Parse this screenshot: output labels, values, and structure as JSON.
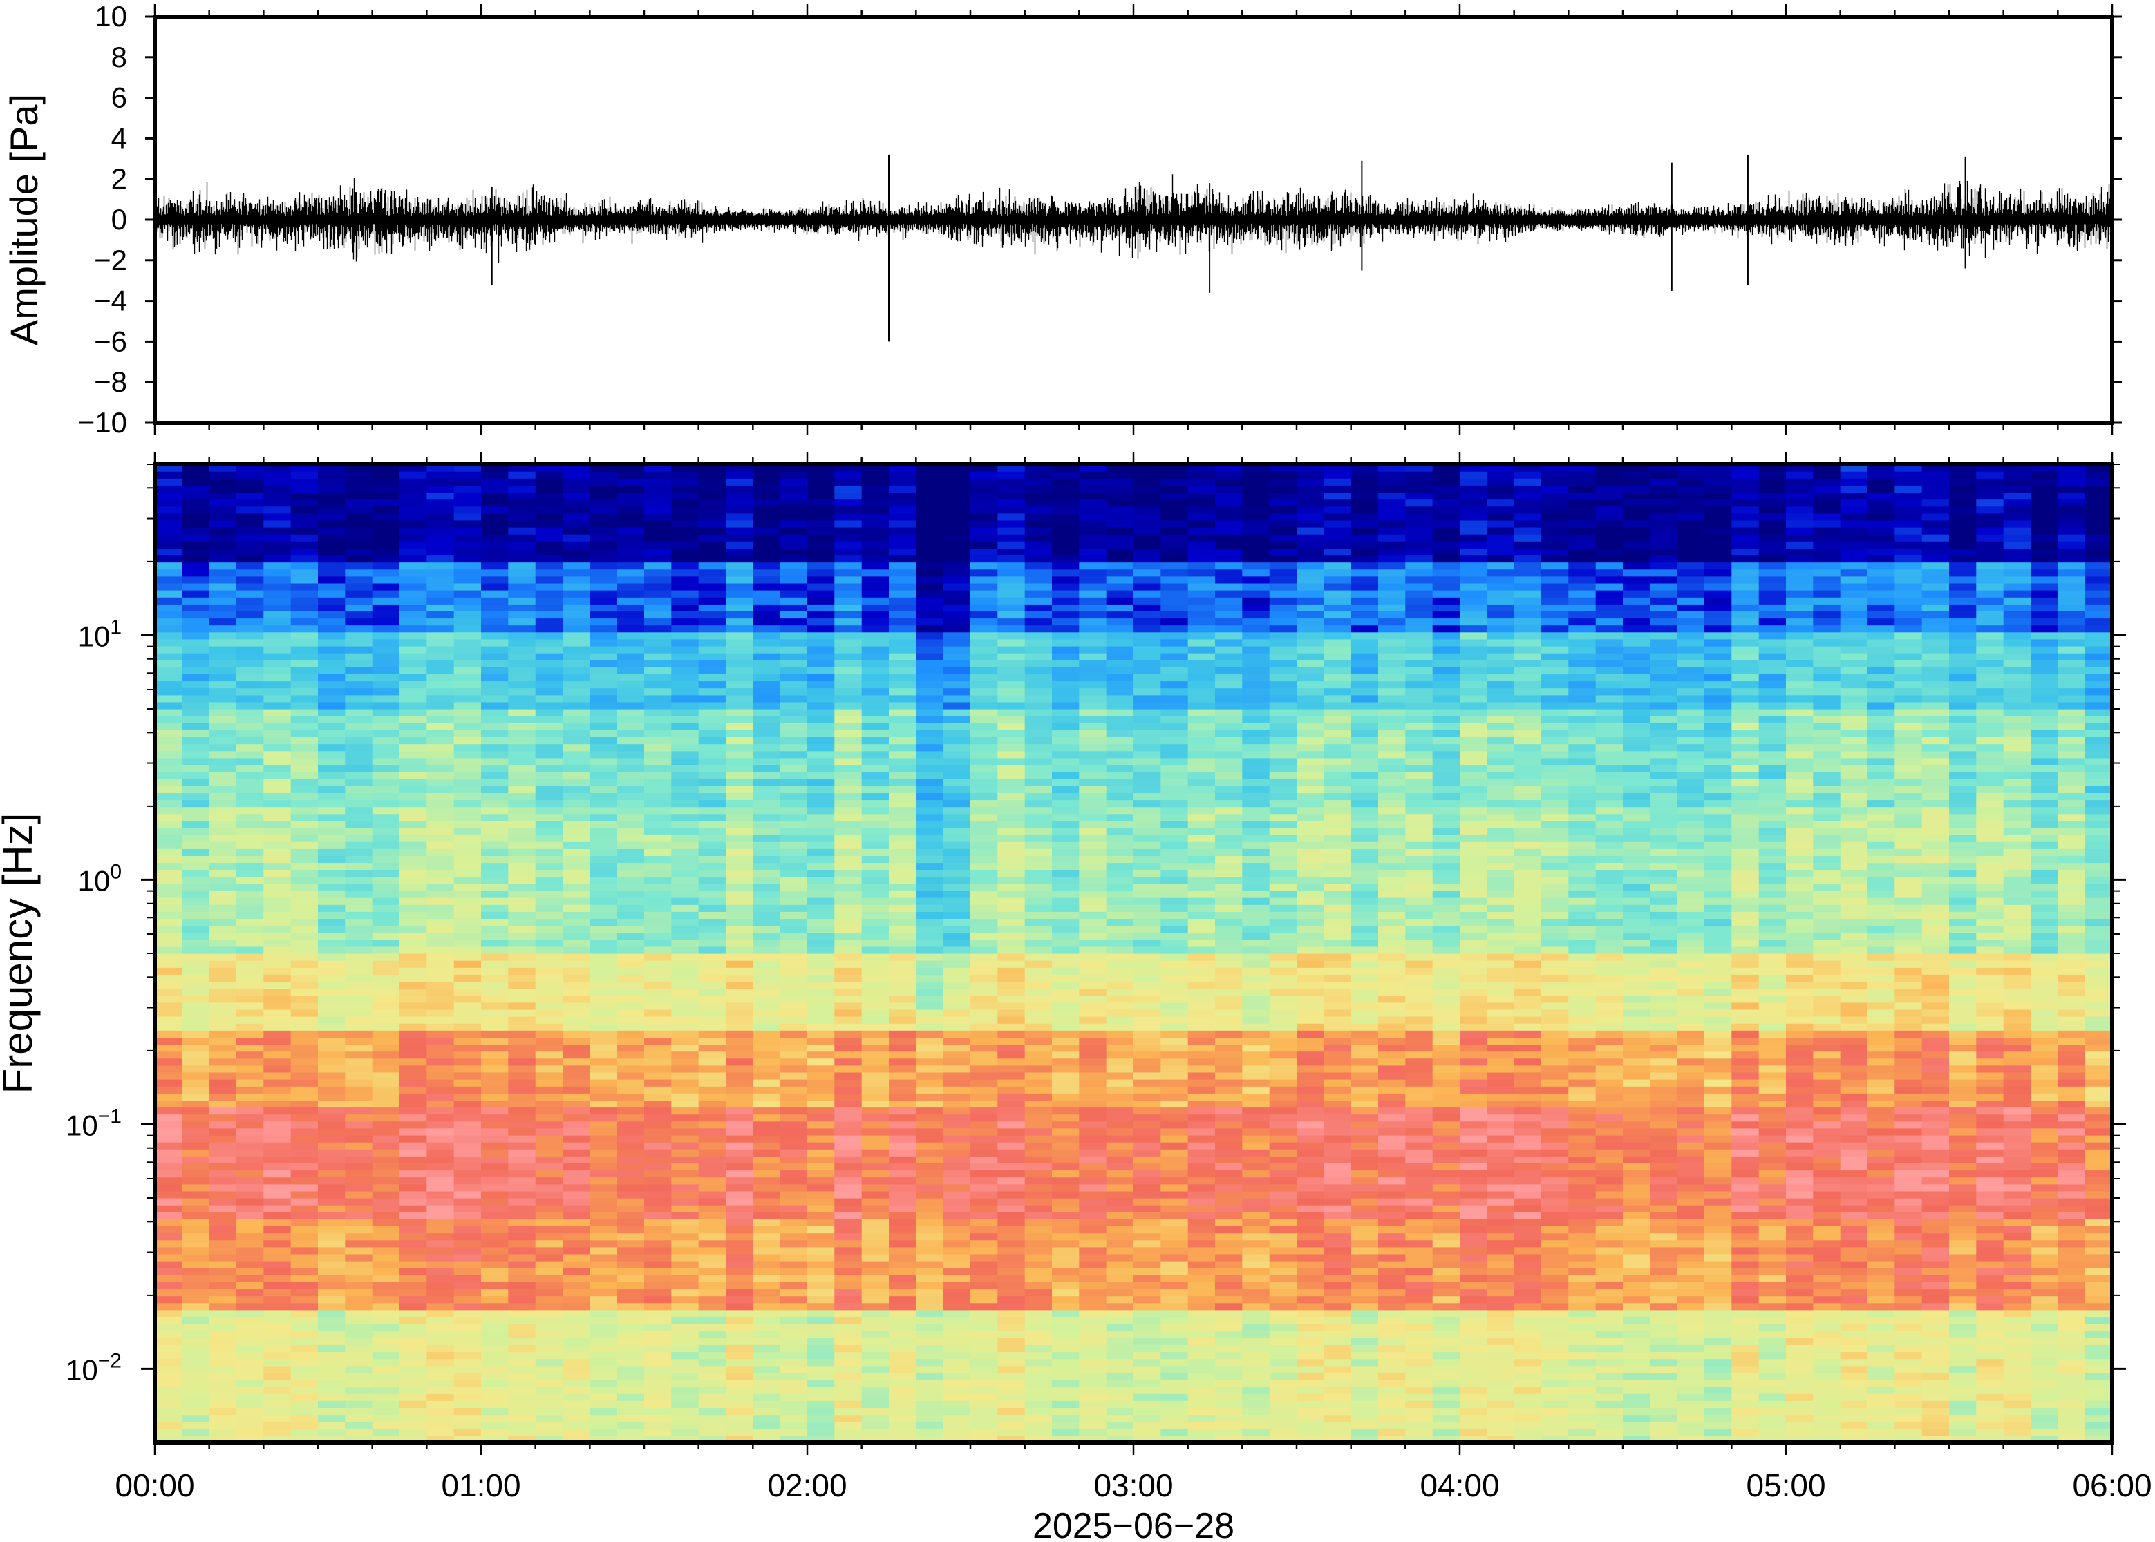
{
  "chart_data": [
    {
      "type": "line",
      "panel": "waveform",
      "ylabel": "Amplitude [Pa]",
      "ylim": [
        -10,
        10
      ],
      "yticks": [
        {
          "value": 10,
          "label": "10"
        },
        {
          "value": 8,
          "label": "8"
        },
        {
          "value": 6,
          "label": "6"
        },
        {
          "value": 4,
          "label": "4"
        },
        {
          "value": 2,
          "label": "2"
        },
        {
          "value": 0,
          "label": "0"
        },
        {
          "value": -2,
          "label": "−2"
        },
        {
          "value": -4,
          "label": "−4"
        },
        {
          "value": -6,
          "label": "−6"
        },
        {
          "value": -8,
          "label": "−8"
        },
        {
          "value": -10,
          "label": "−10"
        }
      ],
      "x_range": [
        "00:00",
        "06:00"
      ],
      "trace_color": "#000000",
      "typical_range": [
        -1.8,
        1.8
      ],
      "peaks": [
        {
          "time": "02:15",
          "min": -6.0,
          "max": 3.2
        },
        {
          "time": "01:02",
          "min": -3.2,
          "max": 1.6
        },
        {
          "time": "03:14",
          "min": -3.6,
          "max": 1.8
        },
        {
          "time": "03:42",
          "min": -2.5,
          "max": 2.9
        },
        {
          "time": "04:39",
          "min": -3.5,
          "max": 2.8
        },
        {
          "time": "04:53",
          "min": -3.2,
          "max": 3.2
        },
        {
          "time": "05:33",
          "min": -2.4,
          "max": 3.1
        }
      ]
    },
    {
      "type": "heatmap",
      "panel": "spectrogram",
      "ylabel": "Frequency [Hz]",
      "yscale": "log",
      "ylim_hz": [
        0.005,
        50
      ],
      "yticks": [
        {
          "value": 10,
          "base": "10",
          "exp": "1"
        },
        {
          "value": 1,
          "base": "10",
          "exp": "0"
        },
        {
          "value": 0.1,
          "base": "10",
          "exp": "−1"
        },
        {
          "value": 0.01,
          "base": "10",
          "exp": "−2"
        }
      ],
      "x_range": [
        "00:00",
        "06:00"
      ],
      "colormap": [
        "#000080",
        "#0000cd",
        "#1e90ff",
        "#3fc6e8",
        "#7ee8d0",
        "#d4f19a",
        "#f3e98a",
        "#fbb454",
        "#f26a5a",
        "#ff9d9d"
      ],
      "bands": [
        {
          "f_lo": 20,
          "f_hi": 50,
          "level": 0.05
        },
        {
          "f_lo": 10,
          "f_hi": 20,
          "level": 0.2
        },
        {
          "f_lo": 5,
          "f_hi": 10,
          "level": 0.35
        },
        {
          "f_lo": 2,
          "f_hi": 5,
          "level": 0.45
        },
        {
          "f_lo": 0.5,
          "f_hi": 2,
          "level": 0.5
        },
        {
          "f_lo": 0.25,
          "f_hi": 0.5,
          "level": 0.65
        },
        {
          "f_lo": 0.12,
          "f_hi": 0.25,
          "level": 0.8
        },
        {
          "f_lo": 0.04,
          "f_hi": 0.12,
          "level": 0.9
        },
        {
          "f_lo": 0.018,
          "f_hi": 0.04,
          "level": 0.82
        },
        {
          "f_lo": 0.005,
          "f_hi": 0.018,
          "level": 0.6
        }
      ],
      "quiet_interval": {
        "time": "02:25",
        "f_lo": 0.3,
        "f_hi": 50
      }
    }
  ],
  "xaxis": {
    "ticks": [
      {
        "minutes": 0,
        "label": "00:00"
      },
      {
        "minutes": 60,
        "label": "01:00"
      },
      {
        "minutes": 120,
        "label": "02:00"
      },
      {
        "minutes": 180,
        "label": "03:00"
      },
      {
        "minutes": 240,
        "label": "04:00"
      },
      {
        "minutes": 300,
        "label": "05:00"
      },
      {
        "minutes": 360,
        "label": "06:00"
      }
    ],
    "minor_step_minutes": 10,
    "span_minutes": 360,
    "date_label": "2025−06−28"
  }
}
